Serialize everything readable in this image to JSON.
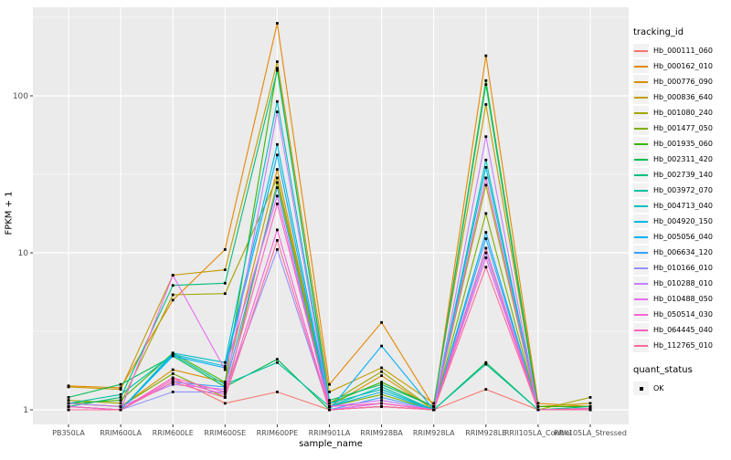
{
  "figure": {
    "background": "#FFFFFF",
    "panel_bg": "#EBEBEB",
    "grid_color": "#FFFFFF",
    "axis_text_color": "#4D4D4D",
    "axis_title_color": "#000000",
    "point_color": "#000000"
  },
  "axes": {
    "x_label": "sample_name",
    "y_label": "FPKM + 1",
    "y_scale": "log10",
    "y_ticks": [
      1,
      10,
      100
    ],
    "y_tick_labels": [
      "1",
      "10",
      "100"
    ],
    "y_minor_ticks": [
      3.162,
      31.62,
      316.2
    ]
  },
  "legend": {
    "tracking_title": "tracking_id",
    "quant_title": "quant_status",
    "quant_items": [
      {
        "label": "OK",
        "marker": "black-square"
      }
    ],
    "key_bg": "#F2F2F2"
  },
  "chart_data": {
    "type": "line",
    "title": "",
    "xlabel": "sample_name",
    "ylabel": "FPKM + 1",
    "yscale": "log10",
    "ylim": [
      0.81,
      366
    ],
    "grid": true,
    "legend_position": "right",
    "marker": "black-square",
    "categories": [
      "PB350LA",
      "RRIM600LA",
      "RRIM600LE",
      "RRIM600SE",
      "RRIM600PE",
      "RRIM901LA",
      "RRIM928BA",
      "RRIM928LA",
      "RRIM928LE",
      "RRII105LA_Control",
      "RRII105LA_Stressed"
    ],
    "series": [
      {
        "name": "Hb_000111_060",
        "color": "#F8766D",
        "values": [
          1.05,
          1.0,
          1.6,
          1.1,
          1.3,
          1.0,
          1.05,
          1.0,
          1.35,
          1.0,
          1.0
        ]
      },
      {
        "name": "Hb_000162_010",
        "color": "#E58700",
        "values": [
          1.42,
          1.38,
          5.0,
          10.5,
          290,
          1.45,
          3.6,
          1.05,
          180,
          1.1,
          1.05
        ]
      },
      {
        "name": "Hb_000776_090",
        "color": "#D89000",
        "values": [
          1.1,
          1.05,
          1.8,
          1.5,
          34,
          1.05,
          1.65,
          1.0,
          30,
          1.0,
          1.02
        ]
      },
      {
        "name": "Hb_000836_640",
        "color": "#C49A00",
        "values": [
          1.4,
          1.35,
          7.2,
          7.8,
          165,
          1.3,
          1.85,
          1.1,
          88,
          1.05,
          1.1
        ]
      },
      {
        "name": "Hb_001080_240",
        "color": "#A3A500",
        "values": [
          1.15,
          1.1,
          5.4,
          5.5,
          30,
          1.1,
          1.75,
          1.0,
          27,
          1.0,
          1.2
        ]
      },
      {
        "name": "Hb_001477_050",
        "color": "#7CAE00",
        "values": [
          1.1,
          1.05,
          1.7,
          1.2,
          28,
          1.05,
          1.25,
          1.0,
          17.8,
          1.0,
          1.02
        ]
      },
      {
        "name": "Hb_001935_060",
        "color": "#39B600",
        "values": [
          1.1,
          1.15,
          2.3,
          1.5,
          150,
          1.1,
          1.5,
          1.05,
          125,
          1.05,
          1.05
        ]
      },
      {
        "name": "Hb_002311_420",
        "color": "#00BB4E",
        "values": [
          1.2,
          1.45,
          2.2,
          1.4,
          2.1,
          1.0,
          1.05,
          1.0,
          2.0,
          1.0,
          1.0
        ]
      },
      {
        "name": "Hb_002739_140",
        "color": "#00BF7D",
        "values": [
          1.05,
          1.2,
          6.2,
          6.4,
          145,
          1.15,
          1.45,
          1.05,
          118,
          1.0,
          1.05
        ]
      },
      {
        "name": "Hb_003972_070",
        "color": "#00C1A3",
        "values": [
          1.1,
          1.25,
          2.25,
          1.45,
          2.0,
          1.05,
          1.4,
          1.0,
          1.95,
          1.0,
          1.02
        ]
      },
      {
        "name": "Hb_004713_040",
        "color": "#00BFC4",
        "values": [
          1.05,
          1.0,
          2.3,
          2.0,
          92,
          1.1,
          1.35,
          1.0,
          39,
          1.0,
          1.02
        ]
      },
      {
        "name": "Hb_004920_150",
        "color": "#00BAE0",
        "values": [
          1.0,
          1.0,
          2.25,
          1.9,
          49,
          1.05,
          1.3,
          1.0,
          35,
          1.0,
          1.0
        ]
      },
      {
        "name": "Hb_005056_040",
        "color": "#00B0F6",
        "values": [
          1.05,
          1.0,
          2.2,
          1.85,
          42,
          1.0,
          2.55,
          1.0,
          13.5,
          1.0,
          1.02
        ]
      },
      {
        "name": "Hb_006634_120",
        "color": "#35A2FF",
        "values": [
          1.0,
          1.0,
          1.5,
          1.4,
          26,
          1.0,
          1.2,
          1.0,
          12.3,
          1.0,
          1.0
        ]
      },
      {
        "name": "Hb_010166_010",
        "color": "#9590FF",
        "values": [
          1.05,
          1.0,
          1.3,
          1.3,
          10.5,
          1.0,
          1.1,
          1.0,
          10.0,
          1.0,
          1.0
        ]
      },
      {
        "name": "Hb_010288_010",
        "color": "#C77CFF",
        "values": [
          1.1,
          1.05,
          1.45,
          1.35,
          79,
          1.05,
          1.15,
          1.0,
          55,
          1.0,
          1.02
        ]
      },
      {
        "name": "Hb_010488_050",
        "color": "#E76BF3",
        "values": [
          1.05,
          1.0,
          7.2,
          1.8,
          23,
          1.0,
          1.1,
          1.0,
          30,
          1.0,
          1.0
        ]
      },
      {
        "name": "Hb_050514_030",
        "color": "#FA62DB",
        "values": [
          1.0,
          1.0,
          1.55,
          1.25,
          14,
          1.0,
          1.05,
          1.0,
          9.3,
          1.0,
          1.0
        ]
      },
      {
        "name": "Hb_064445_040",
        "color": "#FF62BC",
        "values": [
          1.05,
          1.0,
          1.6,
          1.3,
          20.5,
          1.05,
          1.1,
          1.0,
          10.7,
          1.0,
          1.02
        ]
      },
      {
        "name": "Hb_112765_010",
        "color": "#FF6A98",
        "values": [
          1.0,
          1.0,
          1.5,
          1.2,
          12,
          1.0,
          1.05,
          1.0,
          8.1,
          1.0,
          1.0
        ]
      }
    ]
  }
}
